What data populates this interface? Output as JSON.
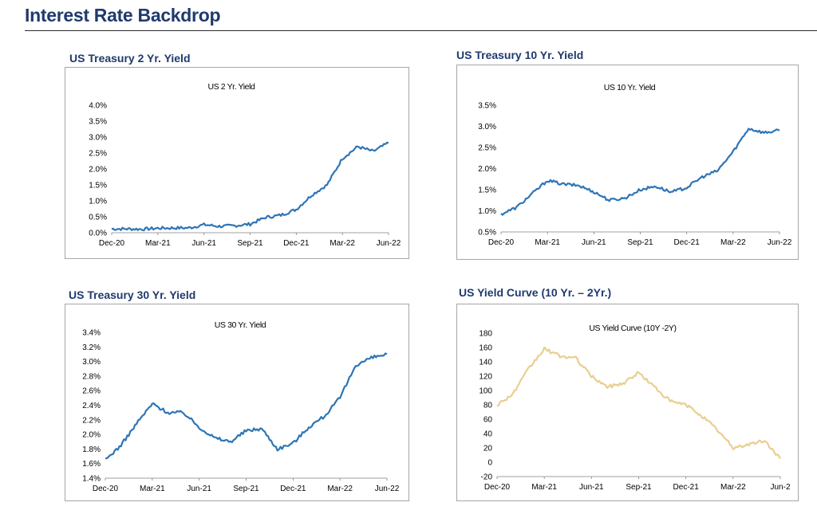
{
  "page": {
    "title": "Interest Rate Backdrop"
  },
  "panels": [
    {
      "heading": "US Treasury 2 Yr. Yield"
    },
    {
      "heading": "US Treasury 10 Yr. Yield"
    },
    {
      "heading": "US Treasury 30 Yr. Yield"
    },
    {
      "heading": "US Yield Curve (10 Yr. – 2Yr.)"
    }
  ],
  "chart_data": [
    {
      "type": "line",
      "title": "US 2 Yr. Yield",
      "color": "#2e75b6",
      "xlabels": [
        "Dec-20",
        "Mar-21",
        "Jun-21",
        "Sep-21",
        "Dec-21",
        "Mar-22",
        "Jun-22"
      ],
      "yticks": [
        "4.0%",
        "3.5%",
        "3.0%",
        "2.5%",
        "2.0%",
        "1.5%",
        "1.0%",
        "0.5%",
        "0.0%"
      ],
      "ylim": [
        0,
        4
      ],
      "series": [
        {
          "x": [
            "Dec-20",
            "Jan-21",
            "Feb-21",
            "Mar-21",
            "Apr-21",
            "May-21",
            "Jun-21",
            "Jul-21",
            "Aug-21",
            "Sep-21",
            "Oct-21",
            "Nov-21",
            "Dec-21",
            "Jan-22",
            "Feb-22",
            "Mar-22",
            "Apr-22",
            "May-22",
            "Jun-22"
          ],
          "values": [
            0.12,
            0.12,
            0.11,
            0.14,
            0.15,
            0.15,
            0.25,
            0.2,
            0.22,
            0.27,
            0.48,
            0.55,
            0.73,
            1.18,
            1.5,
            2.33,
            2.7,
            2.55,
            2.82
          ]
        }
      ]
    },
    {
      "type": "line",
      "title": "US 10 Yr. Yield",
      "color": "#2e75b6",
      "xlabels": [
        "Dec-20",
        "Mar-21",
        "Jun-21",
        "Sep-21",
        "Dec-21",
        "Mar-22",
        "Jun-22"
      ],
      "yticks": [
        "3.5%",
        "3.0%",
        "2.5%",
        "2.0%",
        "1.5%",
        "1.0%",
        "0.5%"
      ],
      "ylim": [
        0.5,
        3.5
      ],
      "series": [
        {
          "x": [
            "Dec-20",
            "Jan-21",
            "Feb-21",
            "Mar-21",
            "Apr-21",
            "May-21",
            "Jun-21",
            "Jul-21",
            "Aug-21",
            "Sep-21",
            "Oct-21",
            "Nov-21",
            "Dec-21",
            "Jan-22",
            "Feb-22",
            "Mar-22",
            "Apr-22",
            "May-22",
            "Jun-22"
          ],
          "values": [
            0.92,
            1.08,
            1.4,
            1.72,
            1.63,
            1.6,
            1.45,
            1.25,
            1.3,
            1.5,
            1.58,
            1.44,
            1.55,
            1.8,
            1.95,
            2.4,
            2.95,
            2.85,
            2.9
          ]
        }
      ]
    },
    {
      "type": "line",
      "title": "US 30 Yr. Yield",
      "color": "#2e75b6",
      "xlabels": [
        "Dec-20",
        "Mar-21",
        "Jun-21",
        "Sep-21",
        "Dec-21",
        "Mar-22",
        "Jun-22"
      ],
      "yticks": [
        "3.4%",
        "3.2%",
        "3.0%",
        "2.8%",
        "2.6%",
        "2.4%",
        "2.2%",
        "2.0%",
        "1.8%",
        "1.6%",
        "1.4%"
      ],
      "ylim": [
        1.4,
        3.4
      ],
      "series": [
        {
          "x": [
            "Dec-20",
            "Jan-21",
            "Feb-21",
            "Mar-21",
            "Apr-21",
            "May-21",
            "Jun-21",
            "Jul-21",
            "Aug-21",
            "Sep-21",
            "Oct-21",
            "Nov-21",
            "Dec-21",
            "Jan-22",
            "Feb-22",
            "Mar-22",
            "Apr-22",
            "May-22",
            "Jun-22"
          ],
          "values": [
            1.65,
            1.85,
            2.15,
            2.42,
            2.3,
            2.3,
            2.1,
            1.95,
            1.9,
            2.05,
            2.08,
            1.8,
            1.88,
            2.1,
            2.25,
            2.5,
            2.95,
            3.05,
            3.1
          ]
        }
      ]
    },
    {
      "type": "line",
      "title": "US Yield Curve (10Y -2Y)",
      "color": "#e8cf8f",
      "xlabels": [
        "Dec-20",
        "Mar-21",
        "Jun-21",
        "Sep-21",
        "Dec-21",
        "Mar-22",
        "Jun-2"
      ],
      "yticks": [
        "180",
        "160",
        "140",
        "120",
        "100",
        "80",
        "60",
        "40",
        "20",
        "0",
        "-20"
      ],
      "ylim": [
        -20,
        180
      ],
      "series": [
        {
          "x": [
            "Dec-20",
            "Jan-21",
            "Feb-21",
            "Mar-21",
            "Apr-21",
            "May-21",
            "Jun-21",
            "Jul-21",
            "Aug-21",
            "Sep-21",
            "Oct-21",
            "Nov-21",
            "Dec-21",
            "Jan-22",
            "Feb-22",
            "Mar-22",
            "Apr-22",
            "May-22",
            "Jun-22"
          ],
          "values": [
            80,
            95,
            130,
            158,
            148,
            145,
            120,
            105,
            110,
            125,
            105,
            85,
            80,
            65,
            45,
            20,
            25,
            30,
            5
          ]
        }
      ]
    }
  ]
}
